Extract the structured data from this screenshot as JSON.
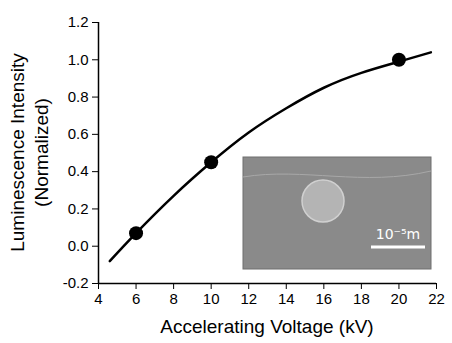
{
  "chart_data": {
    "type": "scatter",
    "x_label": "Accelerating Voltage (kV)",
    "y_label": "Luminescence Intensity (Normalized)",
    "xlim": [
      4,
      22
    ],
    "xticks": [
      4,
      6,
      8,
      10,
      12,
      14,
      16,
      18,
      20,
      22
    ],
    "ylim": [
      -0.2,
      1.2
    ],
    "yticks": [
      -0.2,
      {
        "value": 0,
        "label": "0.0"
      },
      0.2,
      0.4,
      0.6,
      0.8,
      {
        "value": 1,
        "label": "1.0"
      },
      1.2
    ],
    "grid": false,
    "series": [
      {
        "type": "line",
        "color": "#000000",
        "line_style": "solid",
        "x": [
          4.6,
          6,
          8,
          10,
          12,
          14,
          16,
          18,
          20,
          21.7
        ],
        "values": [
          -0.08,
          0.07,
          0.27,
          0.45,
          0.61,
          0.74,
          0.85,
          0.93,
          0.99,
          1.04
        ]
      },
      {
        "type": "scatter",
        "color": "#000000",
        "marker": "circle",
        "x": [
          6,
          10,
          20
        ],
        "values": [
          0.07,
          0.45,
          1.0
        ]
      }
    ],
    "annotations": [
      "10⁻⁵m"
    ]
  }
}
